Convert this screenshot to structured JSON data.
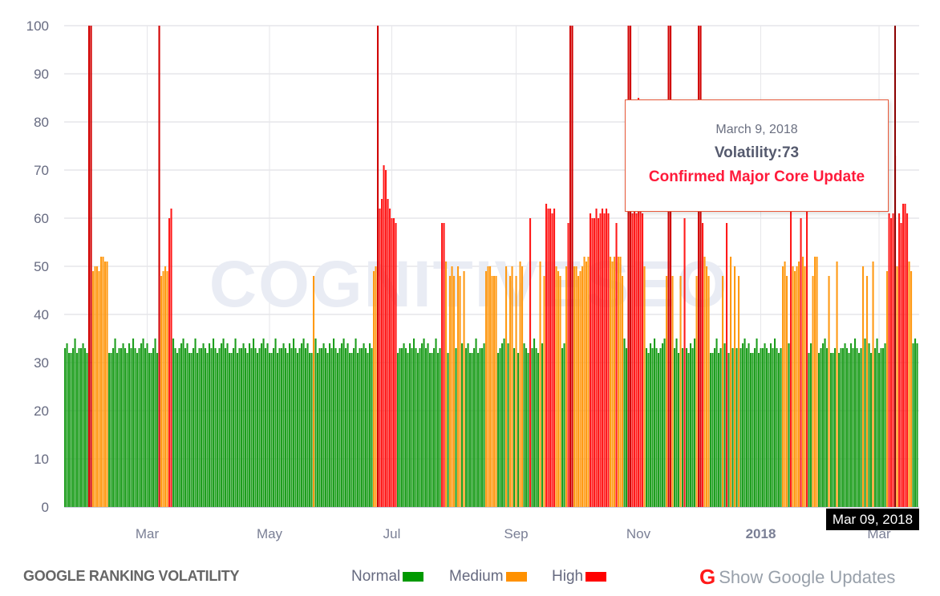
{
  "chart_data": {
    "type": "bar",
    "title": "",
    "xlabel": "",
    "ylabel": "",
    "ylim": [
      0,
      100
    ],
    "y_ticks": [
      0,
      10,
      20,
      30,
      40,
      50,
      60,
      70,
      80,
      90,
      100
    ],
    "x_ticks": [
      {
        "date": "2017-03-01",
        "label": "Mar",
        "bold": false
      },
      {
        "date": "2017-05-01",
        "label": "May",
        "bold": false
      },
      {
        "date": "2017-07-01",
        "label": "Jul",
        "bold": false
      },
      {
        "date": "2017-09-01",
        "label": "Sep",
        "bold": false
      },
      {
        "date": "2017-11-01",
        "label": "Nov",
        "bold": false
      },
      {
        "date": "2018-01-01",
        "label": "2018",
        "bold": true
      },
      {
        "date": "2018-03-01",
        "label": "Mar",
        "bold": false
      }
    ],
    "grid": true,
    "daily_values_by_run_start": {
      "2017-01-19": [
        33,
        34,
        32,
        32,
        33,
        35,
        32,
        33,
        33,
        34,
        33,
        32,
        100
      ],
      "2017-02-01": [
        100,
        49,
        50,
        50,
        49,
        52,
        52,
        51,
        51,
        32,
        32,
        33,
        35,
        32,
        33,
        33,
        34,
        33,
        32,
        34,
        33,
        35,
        33,
        32,
        33,
        34,
        35,
        33
      ],
      "2017-03-01": [
        34,
        32,
        32,
        33,
        35,
        32,
        100,
        48,
        49,
        50,
        49,
        60,
        62,
        35,
        33,
        32,
        33,
        34,
        35,
        33,
        34,
        32,
        32,
        33,
        35,
        32,
        33,
        33,
        34,
        33,
        32
      ],
      "2017-04-01": [
        34,
        33,
        35,
        33,
        32,
        33,
        34,
        35,
        33,
        34,
        32,
        32,
        33,
        35,
        32,
        33,
        33,
        34,
        33,
        32,
        34,
        33,
        35,
        33,
        32,
        33,
        34,
        35,
        33,
        34
      ],
      "2017-05-01": [
        32,
        32,
        33,
        35,
        32,
        33,
        33,
        34,
        33,
        32,
        34,
        33,
        35,
        33,
        32,
        33,
        34,
        35,
        33,
        34,
        32,
        32,
        48,
        35,
        32,
        33,
        33,
        34,
        33,
        32,
        34
      ],
      "2017-06-01": [
        33,
        35,
        33,
        32,
        33,
        34,
        35,
        33,
        34,
        32,
        32,
        33,
        35,
        32,
        33,
        33,
        34,
        33,
        32,
        34,
        33,
        49,
        50,
        100,
        62,
        64,
        71,
        70,
        64,
        62
      ],
      "2017-07-01": [
        60,
        60,
        59,
        32,
        33,
        33,
        34,
        33,
        32,
        34,
        33,
        35,
        33,
        32,
        33,
        34,
        35,
        33,
        34,
        32,
        32,
        33,
        35,
        32,
        33,
        59,
        59,
        51,
        32,
        48,
        50
      ],
      "2017-08-01": [
        48,
        33,
        50,
        48,
        34,
        49,
        33,
        34,
        32,
        32,
        33,
        35,
        32,
        33,
        33,
        34,
        49,
        50,
        50,
        48,
        48,
        48,
        32,
        33,
        34,
        35,
        50,
        34,
        48,
        50,
        33
      ],
      "2017-09-01": [
        48,
        32,
        51,
        50,
        34,
        33,
        32,
        60,
        33,
        35,
        33,
        32,
        51,
        34,
        48,
        63,
        62,
        62,
        61,
        62,
        50,
        49,
        48,
        33,
        34,
        50,
        59,
        100,
        100,
        50
      ],
      "2017-10-01": [
        50,
        48,
        49,
        50,
        52,
        51,
        52,
        61,
        60,
        60,
        62,
        60,
        61,
        62,
        61,
        62,
        61,
        52,
        51,
        52,
        59,
        52,
        52,
        48,
        35,
        33,
        100,
        100,
        61,
        62,
        61
      ],
      "2017-11-01": [
        85,
        62,
        61,
        50,
        33,
        32,
        34,
        33,
        35,
        33,
        32,
        33,
        34,
        35,
        48,
        100,
        100,
        48,
        33,
        35,
        32,
        48,
        33,
        60,
        33,
        32,
        34,
        33,
        35,
        48
      ],
      "2017-12-01": [
        100,
        100,
        59,
        52,
        50,
        48,
        32,
        32,
        33,
        35,
        32,
        33,
        48,
        34,
        59,
        32,
        52,
        33,
        50,
        33,
        48,
        33,
        34,
        35,
        33,
        34,
        32,
        32,
        33,
        35,
        32
      ],
      "2018-01-01": [
        33,
        33,
        34,
        33,
        32,
        34,
        33,
        35,
        33,
        32,
        33,
        50,
        51,
        48,
        34,
        62,
        50,
        49,
        50,
        51,
        60,
        52,
        50,
        62,
        32,
        34,
        48,
        52,
        52,
        32,
        33
      ],
      "2018-02-01": [
        34,
        35,
        33,
        48,
        32,
        32,
        33,
        51,
        32,
        33,
        33,
        34,
        33,
        32,
        34,
        33,
        35,
        33,
        32,
        33,
        50,
        35,
        48,
        34,
        32,
        51,
        33,
        35
      ],
      "2018-03-01": [
        32,
        33,
        33,
        34,
        49,
        61,
        60,
        61,
        73,
        50,
        61,
        59,
        63,
        63,
        61,
        51,
        49,
        34,
        35,
        34
      ]
    },
    "levels": [
      {
        "name": "Normal",
        "max": 35,
        "color": "#1e9e1e"
      },
      {
        "name": "Medium",
        "max": 55,
        "color": "#ff9a14"
      },
      {
        "name": "High",
        "max": 100,
        "color": "#ff1a1a"
      }
    ],
    "hovered_date": "2018-03-09"
  },
  "watermark": "COGNITIVESEO",
  "tooltip": {
    "date": "March 9, 2018",
    "volatility": "Volatility:73",
    "note": "Confirmed Major Core Update"
  },
  "crosshair_label": "Mar 09, 2018",
  "footer": {
    "title": "GOOGLE RANKING VOLATILITY",
    "legend": [
      {
        "label": "Normal",
        "color": "#009900"
      },
      {
        "label": "Medium",
        "color": "#ff9100"
      },
      {
        "label": "High",
        "color": "#ff0000"
      }
    ],
    "google_icon": "google-g-icon",
    "show_updates_label": "Show Google Updates"
  }
}
